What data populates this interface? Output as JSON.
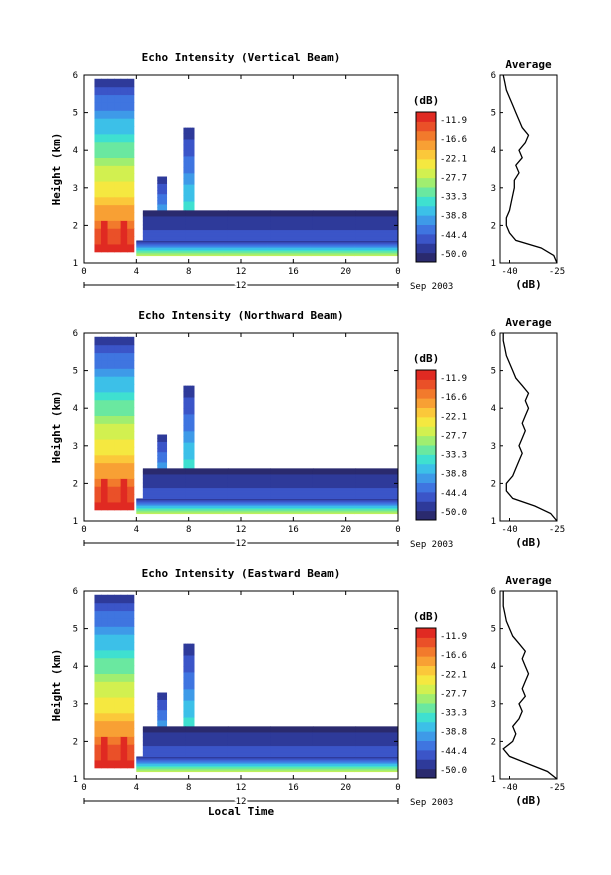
{
  "colors": {
    "scale": [
      "#2a2a6e",
      "#2e3a9a",
      "#3b55c8",
      "#3f75e0",
      "#3e9ae8",
      "#3cc0e8",
      "#3fe0d0",
      "#6ae8a0",
      "#a0ee70",
      "#d2f050",
      "#f5e840",
      "#fbc83a",
      "#f8a034",
      "#f27a2c",
      "#ea5028",
      "#e02a22"
    ],
    "line": "#000000"
  },
  "chart_data": [
    {
      "type": "heatmap",
      "title": "Echo Intensity (Vertical Beam)",
      "ylabel": "Height (km)",
      "ylim": [
        1,
        6
      ],
      "yticks": [
        "1",
        "2",
        "3",
        "4",
        "5",
        "6"
      ],
      "xlim": [
        0,
        24
      ],
      "xticks": [
        "0",
        "4",
        "8",
        "12",
        "16",
        "20",
        "0"
      ],
      "date_label": "12",
      "month_label": "Sep 2003",
      "colorbar": {
        "unit": "(dB)",
        "ticks": [
          "-11.9",
          "-16.6",
          "-22.1",
          "-27.7",
          "-33.3",
          "-38.8",
          "-44.4",
          "-50.0"
        ]
      },
      "bands": [
        {
          "x": [
            0.8,
            3.8
          ],
          "y": [
            1.3,
            5.9
          ],
          "peak_dB": -11.9
        },
        {
          "x": [
            5.6,
            6.3
          ],
          "y": [
            1.3,
            3.3
          ],
          "peak_dB": -27.7
        },
        {
          "x": [
            7.6,
            8.4
          ],
          "y": [
            1.3,
            4.6
          ],
          "peak_dB": -27.7
        },
        {
          "x": [
            4.0,
            24.0
          ],
          "y": [
            1.2,
            1.6
          ],
          "peak_dB": -27.7
        },
        {
          "x": [
            4.5,
            24.0
          ],
          "y": [
            1.6,
            2.4
          ],
          "peak_dB": -44.4
        }
      ],
      "average_profile": {
        "title": "Average",
        "xlabel": "(dB)",
        "xlim": [
          -43,
          -25
        ],
        "xticks": [
          "-40",
          "-25"
        ],
        "height": [
          1.0,
          1.2,
          1.4,
          1.6,
          1.8,
          2.0,
          2.2,
          2.4,
          2.6,
          2.8,
          3.0,
          3.2,
          3.4,
          3.6,
          3.8,
          4.0,
          4.2,
          4.4,
          4.6,
          4.8,
          5.0,
          5.2,
          5.4,
          5.6,
          5.8,
          6.0
        ],
        "dB": [
          -25,
          -26,
          -30,
          -38,
          -40,
          -41,
          -41,
          -40,
          -39.5,
          -39,
          -38.5,
          -38.5,
          -37,
          -38,
          -36,
          -37,
          -35,
          -34,
          -36,
          -37,
          -38,
          -39,
          -40,
          -41,
          -41.5,
          -42
        ]
      }
    },
    {
      "type": "heatmap",
      "title": "Echo Intensity (Northward Beam)",
      "ylabel": "Height (km)",
      "ylim": [
        1,
        6
      ],
      "yticks": [
        "1",
        "2",
        "3",
        "4",
        "5",
        "6"
      ],
      "xlim": [
        0,
        24
      ],
      "xticks": [
        "0",
        "4",
        "8",
        "12",
        "16",
        "20",
        "0"
      ],
      "date_label": "12",
      "month_label": "Sep 2003",
      "colorbar": {
        "unit": "(dB)",
        "ticks": [
          "-11.9",
          "-16.6",
          "-22.1",
          "-27.7",
          "-33.3",
          "-38.8",
          "-44.4",
          "-50.0"
        ]
      },
      "bands": [
        {
          "x": [
            0.8,
            3.8
          ],
          "y": [
            1.3,
            5.9
          ],
          "peak_dB": -11.9
        },
        {
          "x": [
            5.6,
            6.3
          ],
          "y": [
            1.3,
            3.3
          ],
          "peak_dB": -27.7
        },
        {
          "x": [
            7.6,
            8.4
          ],
          "y": [
            1.3,
            4.6
          ],
          "peak_dB": -27.7
        },
        {
          "x": [
            4.0,
            24.0
          ],
          "y": [
            1.2,
            1.6
          ],
          "peak_dB": -27.7
        },
        {
          "x": [
            4.5,
            24.0
          ],
          "y": [
            1.6,
            2.4
          ],
          "peak_dB": -44.4
        }
      ],
      "average_profile": {
        "title": "Average",
        "xlabel": "(dB)",
        "xlim": [
          -43,
          -25
        ],
        "xticks": [
          "-40",
          "-25"
        ],
        "height": [
          1.0,
          1.2,
          1.4,
          1.6,
          1.8,
          2.0,
          2.2,
          2.4,
          2.6,
          2.8,
          3.0,
          3.2,
          3.4,
          3.6,
          3.8,
          4.0,
          4.2,
          4.4,
          4.6,
          4.8,
          5.0,
          5.2,
          5.4,
          5.6,
          5.8,
          6.0
        ],
        "dB": [
          -25,
          -27,
          -32,
          -39,
          -41,
          -41,
          -39,
          -38,
          -37,
          -36,
          -37,
          -36,
          -35,
          -36,
          -35,
          -34,
          -35,
          -34,
          -36,
          -38,
          -39,
          -40,
          -41,
          -41.5,
          -42,
          -42
        ]
      }
    },
    {
      "type": "heatmap",
      "title": "Echo Intensity (Eastward Beam)",
      "ylabel": "Height (km)",
      "ylim": [
        1,
        6
      ],
      "yticks": [
        "1",
        "2",
        "3",
        "4",
        "5",
        "6"
      ],
      "xlim": [
        0,
        24
      ],
      "xticks": [
        "0",
        "4",
        "8",
        "12",
        "16",
        "20",
        "0"
      ],
      "date_label": "12",
      "month_label": "Sep 2003",
      "xlabel": "Local Time",
      "colorbar": {
        "unit": "(dB)",
        "ticks": [
          "-11.9",
          "-16.6",
          "-22.1",
          "-27.7",
          "-33.3",
          "-38.8",
          "-44.4",
          "-50.0"
        ]
      },
      "bands": [
        {
          "x": [
            0.8,
            3.8
          ],
          "y": [
            1.3,
            5.9
          ],
          "peak_dB": -11.9
        },
        {
          "x": [
            5.6,
            6.3
          ],
          "y": [
            1.3,
            3.3
          ],
          "peak_dB": -27.7
        },
        {
          "x": [
            7.6,
            8.4
          ],
          "y": [
            1.3,
            4.6
          ],
          "peak_dB": -27.7
        },
        {
          "x": [
            4.0,
            24.0
          ],
          "y": [
            1.2,
            1.6
          ],
          "peak_dB": -27.7
        },
        {
          "x": [
            4.5,
            24.0
          ],
          "y": [
            1.6,
            2.4
          ],
          "peak_dB": -44.4
        }
      ],
      "average_profile": {
        "title": "Average",
        "xlabel": "(dB)",
        "xlim": [
          -43,
          -25
        ],
        "xticks": [
          "-40",
          "-25"
        ],
        "height": [
          1.0,
          1.2,
          1.4,
          1.6,
          1.8,
          2.0,
          2.2,
          2.4,
          2.6,
          2.8,
          3.0,
          3.2,
          3.4,
          3.6,
          3.8,
          4.0,
          4.2,
          4.4,
          4.6,
          4.8,
          5.0,
          5.2,
          5.4,
          5.6,
          5.8,
          6.0
        ],
        "dB": [
          -25,
          -28,
          -34,
          -40,
          -42,
          -39,
          -38,
          -39,
          -37,
          -36,
          -37,
          -35,
          -36,
          -35,
          -34,
          -35,
          -36,
          -35,
          -37,
          -39,
          -40,
          -41,
          -41.5,
          -42,
          -42,
          -42
        ]
      }
    }
  ]
}
